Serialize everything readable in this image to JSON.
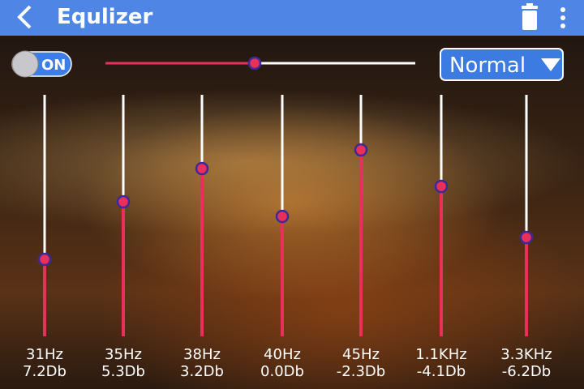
{
  "header": {
    "title": "Equlizer"
  },
  "toggle": {
    "label": "ON"
  },
  "preset": {
    "label": "Normal"
  },
  "bands": [
    {
      "frequency": "31Hz",
      "gain": "7.2Db"
    },
    {
      "frequency": "35Hz",
      "gain": "5.3Db"
    },
    {
      "frequency": "38Hz",
      "gain": "3.2Db"
    },
    {
      "frequency": "40Hz",
      "gain": "0.0Db"
    },
    {
      "frequency": "45Hz",
      "gain": "-2.3Db"
    },
    {
      "frequency": "1.1KHz",
      "gain": "-4.1Db"
    },
    {
      "frequency": "3.3KHz",
      "gain": "-6.2Db"
    }
  ]
}
